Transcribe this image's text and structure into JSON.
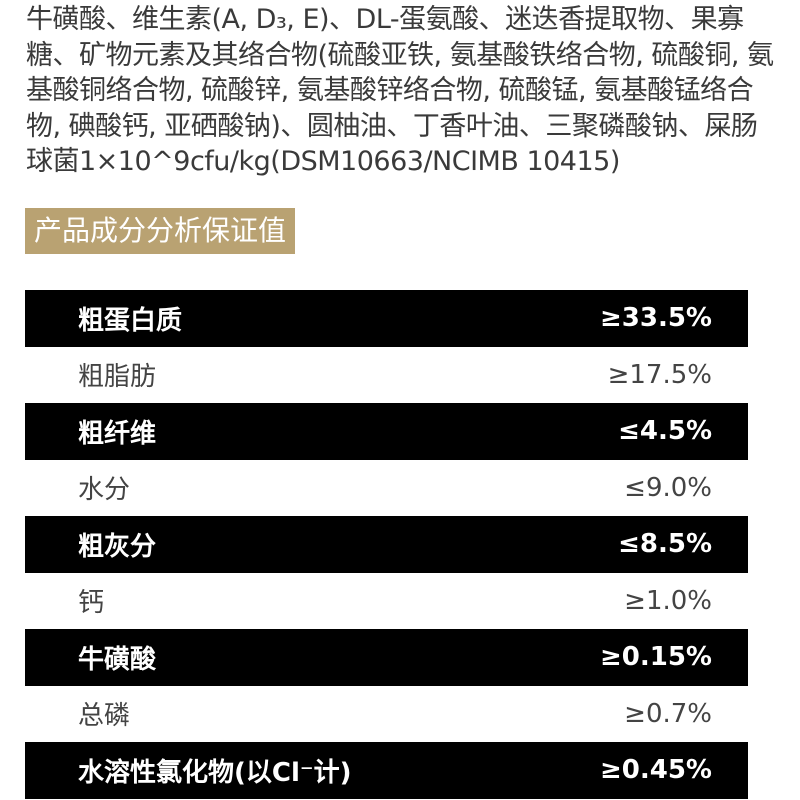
{
  "ingredients_text": "牛磺酸、维生素(A, D₃, E)、DL-蛋氨酸、迷迭香提取物、果寡糖、矿物元素及其络合物(硫酸亚铁, 氨基酸铁络合物, 硫酸铜, 氨基酸铜络合物, 硫酸锌, 氨基酸锌络合物, 硫酸锰, 氨基酸锰络合物, 碘酸钙, 亚硒酸钠)、圆柚油、丁香叶油、三聚磷酸钠、屎肠球菌1×10^9cfu/kg(DSM10663/NCIMB 10415)",
  "section_title": "产品成分分析保证值",
  "colors": {
    "section_bg": "#b9a272",
    "dark_row": "#000000"
  },
  "rows": [
    {
      "label": "粗蛋白质",
      "value": "≥33.5%"
    },
    {
      "label": "粗脂肪",
      "value": "≥17.5%"
    },
    {
      "label": "粗纤维",
      "value": "≤4.5%"
    },
    {
      "label": "水分",
      "value": "≤9.0%"
    },
    {
      "label": "粗灰分",
      "value": "≤8.5%"
    },
    {
      "label": "钙",
      "value": "≥1.0%"
    },
    {
      "label": "牛磺酸",
      "value": "≥0.15%"
    },
    {
      "label": "总磷",
      "value": "≥0.7%"
    },
    {
      "label": "水溶性氯化物(以Cl⁻计)",
      "value": "≥0.45%"
    }
  ]
}
